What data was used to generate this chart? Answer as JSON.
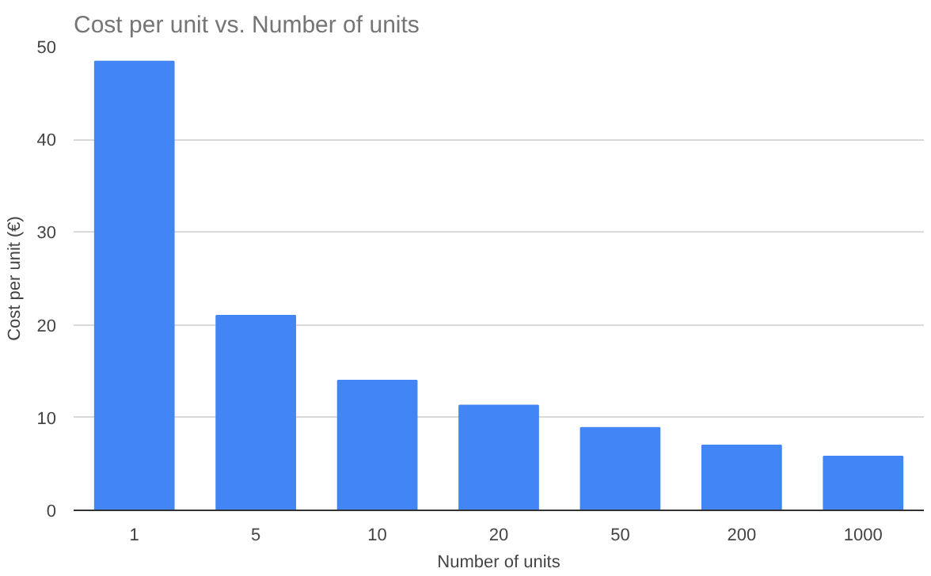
{
  "chart_data": {
    "type": "bar",
    "title": "Cost per unit vs. Number of units",
    "xlabel": "Number of units",
    "ylabel": "Cost per unit (€)",
    "categories": [
      "1",
      "5",
      "10",
      "20",
      "50",
      "200",
      "1000"
    ],
    "values": [
      48.4,
      21.0,
      14.0,
      11.3,
      8.9,
      7.0,
      5.8
    ],
    "color": "#4285f4",
    "ylim": [
      0,
      50
    ],
    "yticks": [
      0,
      10,
      20,
      30,
      40,
      50
    ],
    "grid": "y"
  }
}
